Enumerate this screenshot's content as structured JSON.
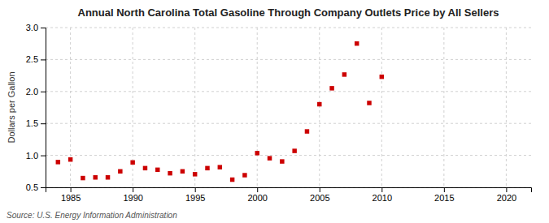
{
  "chart_data": {
    "type": "scatter",
    "title": "Annual North Carolina Total Gasoline Through Company Outlets Price by All Sellers",
    "ylabel": "Dollars per Gallon",
    "source": "Source: U.S. Energy Information Administration",
    "x": [
      1984,
      1985,
      1986,
      1987,
      1988,
      1989,
      1990,
      1991,
      1992,
      1993,
      1994,
      1995,
      1996,
      1997,
      1998,
      1999,
      2000,
      2001,
      2002,
      2003,
      2004,
      2005,
      2006,
      2007,
      2008,
      2009,
      2010
    ],
    "values": [
      0.895,
      0.935,
      0.645,
      0.655,
      0.655,
      0.75,
      0.89,
      0.8,
      0.775,
      0.72,
      0.75,
      0.705,
      0.8,
      0.815,
      0.62,
      0.69,
      1.035,
      0.955,
      0.905,
      1.07,
      1.375,
      1.8,
      2.05,
      2.265,
      2.75,
      1.82,
      2.23
    ],
    "color": "#cc0000",
    "marker": "square",
    "grid": true,
    "xlim": [
      1983,
      2022
    ],
    "ylim": [
      0.5,
      3.0
    ],
    "xticks": [
      1985,
      1990,
      1995,
      2000,
      2005,
      2010,
      2015,
      2020
    ],
    "yticks": [
      0.5,
      {
        "value": 1.0,
        "label": "1.0"
      },
      1.5,
      {
        "value": 2.0,
        "label": "2.0"
      },
      2.5,
      {
        "value": 3.0,
        "label": "3.0"
      }
    ]
  }
}
